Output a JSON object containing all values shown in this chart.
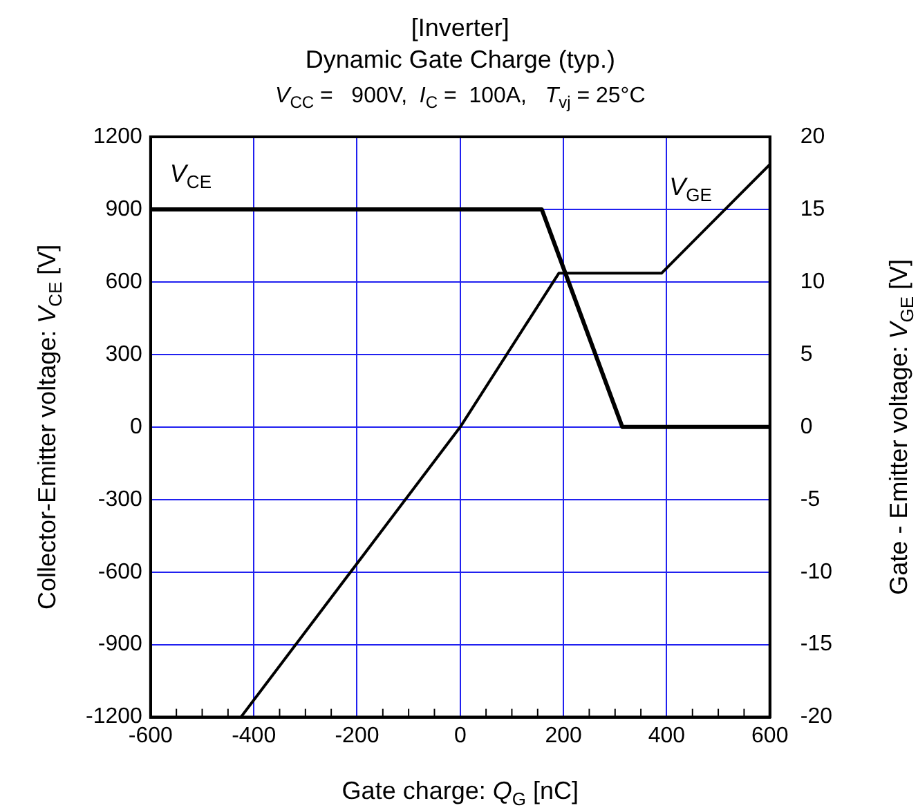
{
  "chart_data": {
    "type": "line",
    "title": "[Inverter]",
    "subtitle": "Dynamic Gate Charge (typ.)",
    "annotations": [
      "V$_{CC}$ =   900V,  I$_{C}$ =  100A,   T$_{vj}$ = 25°C"
    ],
    "xlabel": "Gate charge: Q$_{G}$ [nC]",
    "ylabel": "Collector-Emitter voltage: V$_{CE}$ [V]",
    "y2label": "Gate - Emitter voltage: V$_{GE}$ [V]",
    "series": [
      {
        "name": "V$_{CE}$",
        "color": "#000000",
        "x": [
          -600,
          158,
          314,
          600
        ],
        "values": [
          900,
          900,
          0,
          0
        ]
      },
      {
        "name": "V$_{GE}$",
        "color": "#000000",
        "axis": "y2",
        "x": [
          -425,
          0,
          191,
          390,
          600
        ],
        "values": [
          -20,
          0,
          10.6,
          10.6,
          18.1
        ]
      }
    ],
    "xlim": [
      -600,
      600
    ],
    "xticks": [
      -600,
      {
        "value": -550,
        "label": null
      },
      {
        "value": -500,
        "label": null
      },
      {
        "value": -450,
        "label": null
      },
      -400,
      {
        "value": -350,
        "label": null
      },
      {
        "value": -300,
        "label": null
      },
      {
        "value": -250,
        "label": null
      },
      -200,
      {
        "value": -150,
        "label": null
      },
      {
        "value": -100,
        "label": null
      },
      {
        "value": -50,
        "label": null
      },
      0,
      {
        "value": 50,
        "label": null
      },
      {
        "value": 100,
        "label": null
      },
      {
        "value": 150,
        "label": null
      },
      200,
      {
        "value": 250,
        "label": null
      },
      {
        "value": 300,
        "label": null
      },
      {
        "value": 350,
        "label": null
      },
      400,
      {
        "value": 450,
        "label": null
      },
      {
        "value": 500,
        "label": null
      },
      {
        "value": 550,
        "label": null
      },
      600
    ],
    "ylim": [
      -1200,
      1200
    ],
    "yticks": [
      -1200,
      -900,
      -600,
      -300,
      0,
      300,
      600,
      900,
      1200
    ],
    "y2lim": [
      -20,
      20
    ],
    "y2ticks": [
      -20,
      -15,
      -10,
      -5,
      0,
      5,
      10,
      15,
      20
    ],
    "grid": true,
    "legend": false,
    "marker": "none",
    "line_style": "solid"
  }
}
